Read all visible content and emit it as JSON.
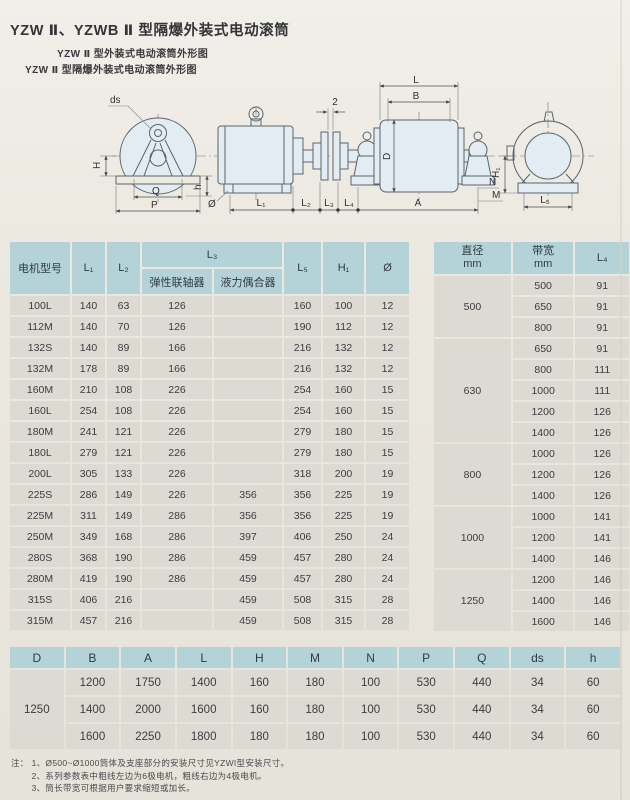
{
  "page": {
    "title": "YZW Ⅱ、YZWB Ⅱ 型隔爆外装式电动滚筒",
    "subtitle1": "YZW Ⅱ 型外装式电动滚筒外形图",
    "subtitle2": "YZW Ⅱ 型隔爆外装式电动滚筒外形图"
  },
  "colors": {
    "page_background": "#e9e6de",
    "table_header": "#b4d3d9",
    "table_cell": "#dcdad2",
    "drawing_fill": "#e2ecf2",
    "text": "#38383b"
  },
  "drawing": {
    "labels": {
      "ds": "ds",
      "H": "H",
      "Q": "Q",
      "P": "P",
      "h": "h",
      "phi": "Ø",
      "gap": "2",
      "L1": "L₁",
      "L2": "L₂",
      "L3": "L₃",
      "L4": "L₄",
      "L": "L",
      "B": "B",
      "D": "D",
      "A": "A",
      "N": "N",
      "M": "M",
      "H1": "H₁",
      "L5": "L₅"
    }
  },
  "main_table": {
    "headers": {
      "model": "电机型号",
      "l1": "L₁",
      "l2": "L₂",
      "l3": "L₃",
      "l3a": "弹性联轴器",
      "l3b": "液力偶合器",
      "l5": "L₅",
      "h1": "H₁",
      "phi": "Ø"
    },
    "rows": [
      [
        "100L",
        "140",
        "63",
        "126",
        "",
        "160",
        "100",
        "12"
      ],
      [
        "112M",
        "140",
        "70",
        "126",
        "",
        "190",
        "112",
        "12"
      ],
      [
        "132S",
        "140",
        "89",
        "166",
        "",
        "216",
        "132",
        "12"
      ],
      [
        "132M",
        "178",
        "89",
        "166",
        "",
        "216",
        "132",
        "12"
      ],
      [
        "160M",
        "210",
        "108",
        "226",
        "",
        "254",
        "160",
        "15"
      ],
      [
        "160L",
        "254",
        "108",
        "226",
        "",
        "254",
        "160",
        "15"
      ],
      [
        "180M",
        "241",
        "121",
        "226",
        "",
        "279",
        "180",
        "15"
      ],
      [
        "180L",
        "279",
        "121",
        "226",
        "",
        "279",
        "180",
        "15"
      ],
      [
        "200L",
        "305",
        "133",
        "226",
        "",
        "318",
        "200",
        "19"
      ],
      [
        "225S",
        "286",
        "149",
        "226",
        "356",
        "356",
        "225",
        "19"
      ],
      [
        "225M",
        "311",
        "149",
        "286",
        "356",
        "356",
        "225",
        "19"
      ],
      [
        "250M",
        "349",
        "168",
        "286",
        "397",
        "406",
        "250",
        "24"
      ],
      [
        "280S",
        "368",
        "190",
        "286",
        "459",
        "457",
        "280",
        "24"
      ],
      [
        "280M",
        "419",
        "190",
        "286",
        "459",
        "457",
        "280",
        "24"
      ],
      [
        "315S",
        "406",
        "216",
        "",
        "459",
        "508",
        "315",
        "28"
      ],
      [
        "315M",
        "457",
        "216",
        "",
        "459",
        "508",
        "315",
        "28"
      ]
    ]
  },
  "right_table": {
    "headers": {
      "dia": "直径",
      "dia_unit": "mm",
      "bw": "带宽",
      "bw_unit": "mm",
      "l4": "L₄"
    },
    "groups": [
      {
        "diameter": "500",
        "rows": [
          [
            "500",
            "91"
          ],
          [
            "650",
            "91"
          ],
          [
            "800",
            "91"
          ]
        ]
      },
      {
        "diameter": "630",
        "rows": [
          [
            "650",
            "91"
          ],
          [
            "800",
            "111"
          ],
          [
            "1000",
            "111"
          ],
          [
            "1200",
            "126"
          ],
          [
            "1400",
            "126"
          ]
        ]
      },
      {
        "diameter": "800",
        "rows": [
          [
            "1000",
            "126"
          ],
          [
            "1200",
            "126"
          ],
          [
            "1400",
            "126"
          ]
        ]
      },
      {
        "diameter": "1000",
        "rows": [
          [
            "1000",
            "141"
          ],
          [
            "1200",
            "141"
          ],
          [
            "1400",
            "146"
          ]
        ]
      },
      {
        "diameter": "1250",
        "rows": [
          [
            "1200",
            "146"
          ],
          [
            "1400",
            "146"
          ],
          [
            "1600",
            "146"
          ]
        ]
      }
    ]
  },
  "bottom_table": {
    "headers": [
      "D",
      "B",
      "A",
      "L",
      "H",
      "M",
      "N",
      "P",
      "Q",
      "ds",
      "h"
    ],
    "d_value": "1250",
    "rows": [
      [
        "1200",
        "1750",
        "1400",
        "160",
        "180",
        "100",
        "530",
        "440",
        "34",
        "60"
      ],
      [
        "1400",
        "2000",
        "1600",
        "160",
        "180",
        "100",
        "530",
        "440",
        "34",
        "60"
      ],
      [
        "1600",
        "2250",
        "1800",
        "180",
        "180",
        "100",
        "530",
        "440",
        "34",
        "60"
      ]
    ]
  },
  "notes": {
    "label": "注：",
    "items": [
      "1、Ø500~Ø1000筒体及支座部分的安装尺寸见YZWI型安装尺寸。",
      "2、系列参数表中粗线左边为6极电机，粗线右边为4极电机。",
      "3、筒长带宽可根据用户要求缩短或加长。"
    ]
  }
}
